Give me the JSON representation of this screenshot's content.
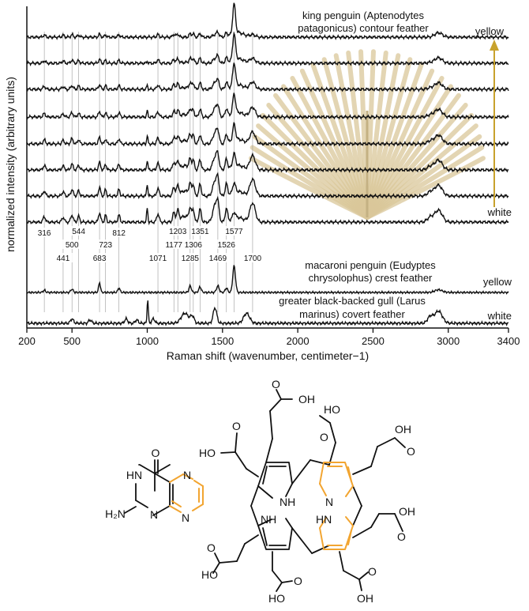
{
  "chart_data": {
    "type": "line",
    "xlabel": "Raman shift (wavenumber, centimeter−1)",
    "ylabel": "normalized intensity (arbitrary units)",
    "xlim": [
      200,
      3400
    ],
    "xticks": [
      200,
      500,
      1000,
      1500,
      2000,
      2500,
      3000,
      3400
    ],
    "grid": false,
    "legend": "none",
    "line_color": "#111111",
    "peaks": [
      316,
      441,
      500,
      544,
      683,
      723,
      812,
      1071,
      1177,
      1203,
      1285,
      1306,
      1351,
      1469,
      1526,
      1577,
      1700
    ],
    "annotations": {
      "king_line1": "king penguin (Aptenodytes",
      "king_line2": "patagonicus) contour feather",
      "macaroni_line1": "macaroni penguin (Eudyptes",
      "macaroni_line2": "chrysolophus) crest feather",
      "gull_line1": "greater black-backed gull (Larus",
      "gull_line2": "marinus) covert feather",
      "yellow_top": "yellow",
      "white_bottom": "white",
      "yellow_macaroni": "yellow",
      "white_gull": "white"
    },
    "arrow_color": "#c8a22c",
    "feather_color": "#d9c79a",
    "series_count": 10
  },
  "chemistry": {
    "highlight_color": "#f2a531",
    "pterin": {
      "atoms": {
        "o": "O",
        "n1": "N",
        "n2": "N",
        "hn": "HN",
        "h2n": "H₂N",
        "n3": "N"
      }
    },
    "porphyrin": {
      "labels": {
        "ho": "HO",
        "oh": "OH",
        "o": "O",
        "nh": "NH",
        "hn": "HN",
        "n": "N"
      }
    }
  }
}
